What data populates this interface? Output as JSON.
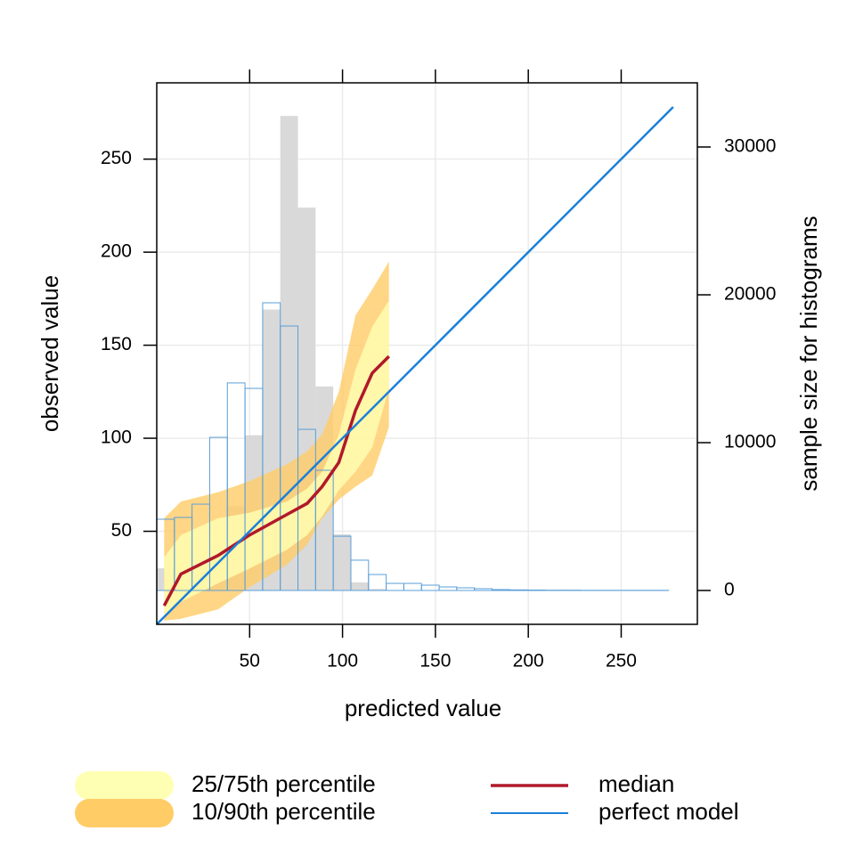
{
  "chart_data": {
    "type": "quantile",
    "xlabel": "predicted value",
    "ylabel": "observed value",
    "y2label": "sample size for histograms",
    "xlim": [
      0,
      291
    ],
    "ylim": [
      0,
      291
    ],
    "y2lim": [
      -2290,
      34340
    ],
    "xticks": [
      50,
      100,
      150,
      200,
      250
    ],
    "yticks": [
      50,
      100,
      150,
      200,
      250
    ],
    "y2ticks": [
      0,
      10000,
      20000,
      30000
    ],
    "grid": true,
    "x": [
      4,
      13,
      33,
      50,
      70,
      81,
      89,
      98,
      107,
      116,
      125
    ],
    "bands": [
      {
        "name": "10/90th percentile",
        "color": "#ffcc66",
        "lower": [
          2,
          3,
          8,
          20,
          32,
          43,
          57,
          67,
          74,
          80,
          106
        ],
        "upper": [
          57,
          66,
          71,
          77,
          86,
          93,
          102,
          125,
          166,
          180,
          195
        ]
      },
      {
        "name": "25/75th percentile",
        "color": "#ffffb3",
        "lower": [
          4,
          12,
          22,
          30,
          40,
          48,
          58,
          72,
          82,
          95,
          127
        ],
        "upper": [
          36,
          48,
          57,
          60,
          66,
          73,
          82,
          102,
          137,
          160,
          174
        ]
      }
    ],
    "series": [
      {
        "name": "median",
        "color": "#b0192b",
        "x": [
          4,
          13,
          33,
          50,
          70,
          81,
          89,
          98,
          107,
          116,
          125
        ],
        "values": [
          10,
          27,
          37,
          48,
          59,
          65,
          74,
          87,
          115,
          135,
          144
        ]
      },
      {
        "name": "perfect model",
        "color": "#1a80d9",
        "x": [
          0,
          278
        ],
        "values": [
          0,
          278
        ]
      }
    ],
    "histogram": {
      "bins": [
        0,
        9.5,
        19,
        28.5,
        38,
        47.5,
        57,
        66.5,
        76,
        85.5,
        95,
        104.5,
        114,
        123.5,
        133,
        142.5,
        152,
        161.5,
        171,
        180.5,
        190,
        199.5,
        209,
        218.5,
        228,
        237.5,
        247,
        256.5,
        266,
        275.5
      ],
      "observed_color": "#d9d9d9",
      "predicted_color": "#5a9fd8",
      "observed": [
        1500,
        1600,
        2100,
        3100,
        5700,
        10500,
        19000,
        32100,
        25900,
        13800,
        3800,
        550,
        100,
        0,
        0,
        0,
        0,
        0,
        0,
        0,
        0,
        0,
        0,
        0,
        0,
        0,
        0,
        0,
        0
      ],
      "predicted": [
        4820,
        4940,
        5840,
        10360,
        14040,
        13670,
        19460,
        17890,
        10900,
        8130,
        3670,
        2050,
        1080,
        480,
        480,
        360,
        240,
        180,
        120,
        60,
        40,
        30,
        20,
        20,
        10,
        10,
        10,
        10,
        10
      ]
    }
  }
}
